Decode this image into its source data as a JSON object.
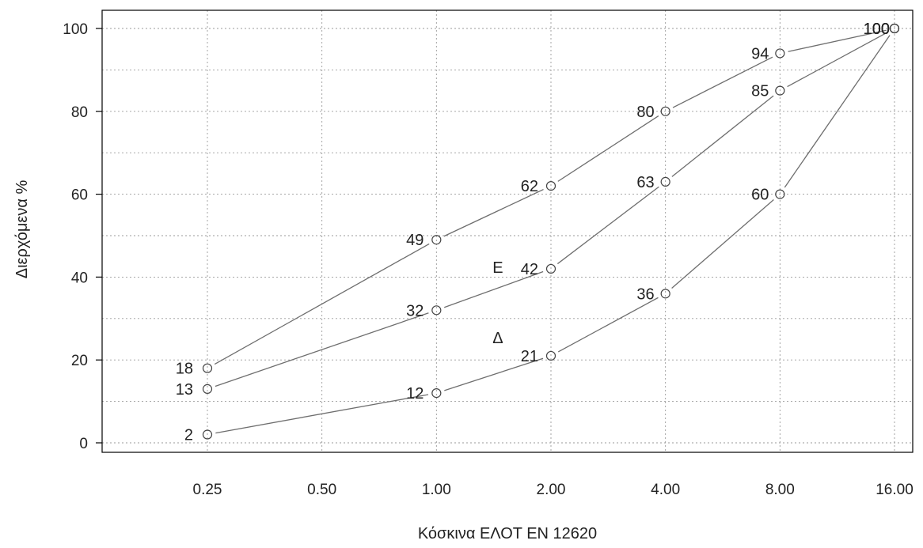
{
  "chart_data": {
    "type": "line",
    "title": "",
    "xlabel": "Κόσκινα ΕΛΟΤ ΕΝ 12620",
    "ylabel": "Διερχόμενα %",
    "x_scale": "log2",
    "x": [
      0.25,
      1.0,
      2.0,
      4.0,
      8.0,
      16.0
    ],
    "x_ticks": [
      "0.25",
      "0.50",
      "1.00",
      "2.00",
      "4.00",
      "8.00",
      "16.00"
    ],
    "x_tick_values": [
      0.25,
      0.5,
      1,
      2,
      4,
      8,
      16
    ],
    "y_ticks": [
      "0",
      "20",
      "40",
      "60",
      "80",
      "100"
    ],
    "y_tick_values": [
      0,
      20,
      40,
      60,
      80,
      100
    ],
    "ylim": [
      0,
      100
    ],
    "grid": true,
    "series": [
      {
        "x": [
          0.25,
          1,
          2,
          4,
          8,
          16
        ],
        "values": [
          18,
          49,
          62,
          80,
          94,
          100
        ],
        "labels": [
          "18",
          "49",
          "62",
          "80",
          "94",
          "100"
        ]
      },
      {
        "x": [
          0.25,
          1,
          2,
          4,
          8,
          16
        ],
        "values": [
          13,
          32,
          42,
          63,
          85,
          100
        ],
        "labels": [
          "13",
          "32",
          "42",
          "63",
          "85",
          "100"
        ]
      },
      {
        "x": [
          0.25,
          1,
          2,
          4,
          8,
          16
        ],
        "values": [
          2,
          12,
          21,
          36,
          60,
          100
        ],
        "labels": [
          "2",
          "12",
          "21",
          "36",
          "60",
          "100"
        ]
      }
    ],
    "annotations": [
      {
        "text": "Ε",
        "x": 1.45,
        "y": 41
      },
      {
        "text": "Δ",
        "x": 1.45,
        "y": 24
      }
    ]
  }
}
